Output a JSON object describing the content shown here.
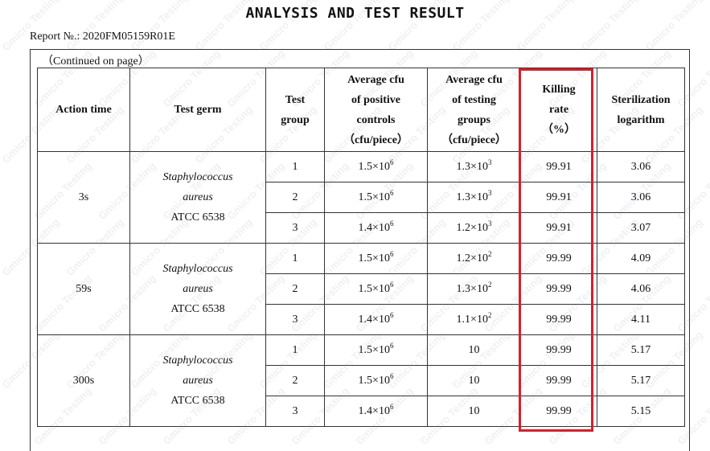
{
  "header": {
    "title": "ANALYSIS AND TEST RESULT",
    "report_no": "Report №.: 2020FM05159R01E",
    "continued": "（Continued on page）"
  },
  "table": {
    "columns": {
      "action_time": "Action time",
      "test_germ": "Test germ",
      "test_group": [
        "Test",
        "group"
      ],
      "avg_positive": [
        "Average cfu",
        "of positive",
        "controls",
        "（cfu/piece）"
      ],
      "avg_testing": [
        "Average cfu",
        "of testing",
        "groups",
        "（cfu/piece）"
      ],
      "killing_rate": [
        "Killing",
        "rate",
        "（%）"
      ],
      "sterilization": [
        "Sterilization",
        "logarithm"
      ]
    },
    "blocks": [
      {
        "time": "3s",
        "germ": [
          "Staphylococcus",
          "aureus",
          "ATCC 6538"
        ],
        "rows": [
          {
            "group": "1",
            "pos_base": "1.5×10",
            "pos_exp": "6",
            "test_base": "1.3×10",
            "test_exp": "3",
            "rate": "99.91",
            "log": "3.06"
          },
          {
            "group": "2",
            "pos_base": "1.5×10",
            "pos_exp": "6",
            "test_base": "1.3×10",
            "test_exp": "3",
            "rate": "99.91",
            "log": "3.06"
          },
          {
            "group": "3",
            "pos_base": "1.4×10",
            "pos_exp": "6",
            "test_base": "1.2×10",
            "test_exp": "3",
            "rate": "99.91",
            "log": "3.07"
          }
        ]
      },
      {
        "time": "59s",
        "germ": [
          "Staphylococcus",
          "aureus",
          "ATCC 6538"
        ],
        "rows": [
          {
            "group": "1",
            "pos_base": "1.5×10",
            "pos_exp": "6",
            "test_base": "1.2×10",
            "test_exp": "2",
            "rate": "99.99",
            "log": "4.09"
          },
          {
            "group": "2",
            "pos_base": "1.5×10",
            "pos_exp": "6",
            "test_base": "1.3×10",
            "test_exp": "2",
            "rate": "99.99",
            "log": "4.06"
          },
          {
            "group": "3",
            "pos_base": "1.4×10",
            "pos_exp": "6",
            "test_base": "1.1×10",
            "test_exp": "2",
            "rate": "99.99",
            "log": "4.11"
          }
        ]
      },
      {
        "time": "300s",
        "germ": [
          "Staphylococcus",
          "aureus",
          "ATCC 6538"
        ],
        "rows": [
          {
            "group": "1",
            "pos_base": "1.5×10",
            "pos_exp": "6",
            "test_base": "10",
            "test_exp": "",
            "rate": "99.99",
            "log": "5.17"
          },
          {
            "group": "2",
            "pos_base": "1.5×10",
            "pos_exp": "6",
            "test_base": "10",
            "test_exp": "",
            "rate": "99.99",
            "log": "5.17"
          },
          {
            "group": "3",
            "pos_base": "1.4×10",
            "pos_exp": "6",
            "test_base": "10",
            "test_exp": "",
            "rate": "99.99",
            "log": "5.15"
          }
        ]
      }
    ]
  },
  "watermark": {
    "text": "Gmicro Testing"
  },
  "highlight": {
    "color": "#d6202a"
  }
}
